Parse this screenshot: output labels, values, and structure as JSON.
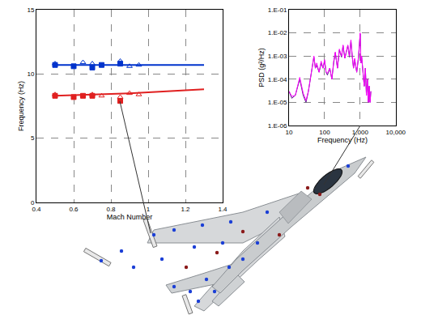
{
  "chart_data": [
    {
      "type": "scatter",
      "x_label": "Mach Number",
      "y_label": "Frequency (Hz)",
      "xlim": [
        0.4,
        1.4
      ],
      "xticks": [
        0.4,
        0.6,
        0.8,
        1,
        1.2,
        1.4
      ],
      "ylim": [
        0,
        15
      ],
      "yticks": [
        0,
        5,
        10,
        15
      ],
      "grid": true,
      "series": [
        {
          "type": "line",
          "color": "#0033cc",
          "marker": "none",
          "line_style": "solid",
          "x": [
            0.5,
            1.3
          ],
          "values": [
            10.7,
            10.7
          ]
        },
        {
          "type": "line",
          "color": "#e02020",
          "marker": "none",
          "line_style": "solid",
          "x": [
            0.5,
            0.9,
            1.3
          ],
          "values": [
            8.3,
            8.5,
            8.8
          ]
        },
        {
          "type": "scatter",
          "color": "#0033cc",
          "marker": "square",
          "x": [
            0.5,
            0.6,
            0.7,
            0.75,
            0.85
          ],
          "values": [
            10.7,
            10.6,
            10.5,
            10.7,
            10.8
          ]
        },
        {
          "type": "scatter",
          "color": "#0033cc",
          "marker": "triangle-open",
          "x": [
            0.5,
            0.65,
            0.7,
            0.85,
            0.9,
            0.95
          ],
          "values": [
            10.8,
            10.9,
            10.8,
            11.0,
            10.6,
            10.7
          ]
        },
        {
          "type": "scatter",
          "color": "#e02020",
          "marker": "square",
          "x": [
            0.5,
            0.6,
            0.65,
            0.7,
            0.85
          ],
          "values": [
            8.3,
            8.2,
            8.3,
            8.3,
            7.9
          ]
        },
        {
          "type": "scatter",
          "color": "#e02020",
          "marker": "triangle-open",
          "x": [
            0.5,
            0.65,
            0.7,
            0.75,
            0.85,
            0.9,
            0.95
          ],
          "values": [
            8.4,
            8.3,
            8.4,
            8.3,
            8.2,
            8.5,
            8.4
          ]
        }
      ]
    },
    {
      "type": "line",
      "x_label": "Frequency (Hz)",
      "y_label": "PSD (g²/Hz)",
      "log": true,
      "grid": true,
      "xlim": [
        10,
        10000
      ],
      "xticks": [
        10,
        100,
        {
          "value": 1000,
          "label": "1,000"
        },
        {
          "value": 10000,
          "label": "10,000"
        }
      ],
      "ylim": [
        1e-06,
        0.1
      ],
      "yticks": [
        {
          "value": 1e-06,
          "label": "1.E-06"
        },
        {
          "value": 1e-05,
          "label": "1.E-05"
        },
        {
          "value": 0.0001,
          "label": "1.E-04"
        },
        {
          "value": 0.001,
          "label": "1.E-03"
        },
        {
          "value": 0.01,
          "label": "1.E-02"
        },
        {
          "value": 0.1,
          "label": "1.E-01"
        }
      ],
      "x": [
        10,
        12,
        15,
        18,
        20,
        25,
        30,
        35,
        40,
        45,
        50,
        55,
        60,
        70,
        80,
        90,
        100,
        110,
        120,
        140,
        160,
        180,
        200,
        230,
        260,
        300,
        330,
        370,
        400,
        450,
        500,
        550,
        600,
        650,
        700,
        800,
        900,
        1000,
        1050,
        1100,
        1200,
        1300,
        1400,
        1500,
        1600,
        1700,
        1800,
        1900,
        2000
      ],
      "series": [
        {
          "color": "#5a1a8c",
          "line_style": "solid",
          "values": [
            3e-05,
            1.5e-05,
            2e-05,
            5e-05,
            0.0001,
            2e-05,
            1e-05,
            3e-05,
            0.0001,
            0.0003,
            0.0009,
            0.0003,
            0.0004,
            0.0002,
            0.0005,
            0.0003,
            0.0006,
            0.0002,
            0.00015,
            0.0003,
            0.0001,
            0.0005,
            0.0014,
            0.0003,
            0.0018,
            0.0009,
            0.0028,
            0.0008,
            0.0014,
            0.0028,
            0.0009,
            0.0045,
            0.0009,
            0.0003,
            0.0007,
            0.0002,
            0.0009,
            0.009,
            0.0005,
            0.0009,
            0.0002,
            5e-05,
            0.0003,
            2e-05,
            0.0001,
            1e-05,
            5e-05,
            1e-05,
            3e-05
          ]
        },
        {
          "color": "#ff00ff",
          "line_style": "solid",
          "values": [
            3e-05,
            1.8e-05,
            2e-05,
            6e-05,
            0.00012,
            2.5e-05,
            1.2e-05,
            3e-05,
            0.00012,
            0.0003,
            0.001,
            0.0003,
            0.0005,
            0.0002,
            0.0006,
            0.0003,
            0.0007,
            0.0002,
            0.00018,
            0.0003,
            0.0001,
            0.0006,
            0.0015,
            0.0003,
            0.002,
            0.001,
            0.003,
            0.0008,
            0.0015,
            0.003,
            0.001,
            0.005,
            0.001,
            0.0003,
            0.0008,
            0.0002,
            0.001,
            0.01,
            0.0005,
            0.001,
            0.0002,
            5e-05,
            0.0003,
            2e-05,
            0.0001,
            1e-05,
            5e-05,
            1e-05,
            3e-05
          ]
        }
      ]
    }
  ]
}
